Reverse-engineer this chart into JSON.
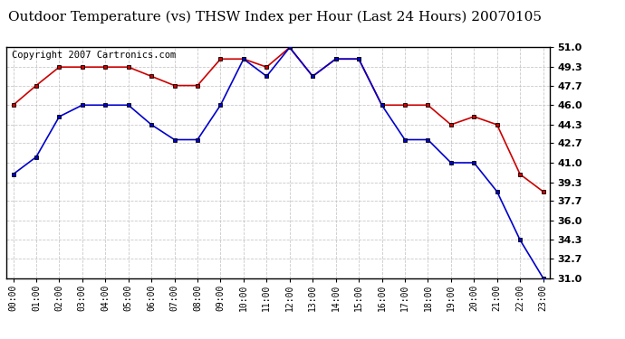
{
  "title": "Outdoor Temperature (vs) THSW Index per Hour (Last 24 Hours) 20070105",
  "copyright": "Copyright 2007 Cartronics.com",
  "hours": [
    "00:00",
    "01:00",
    "02:00",
    "03:00",
    "04:00",
    "05:00",
    "06:00",
    "07:00",
    "08:00",
    "09:00",
    "10:00",
    "11:00",
    "12:00",
    "13:00",
    "14:00",
    "15:00",
    "16:00",
    "17:00",
    "18:00",
    "19:00",
    "20:00",
    "21:00",
    "22:00",
    "23:00"
  ],
  "red_temp": [
    46.0,
    47.7,
    49.3,
    49.3,
    49.3,
    49.3,
    48.5,
    47.7,
    47.7,
    50.0,
    50.0,
    49.3,
    51.0,
    48.5,
    50.0,
    50.0,
    46.0,
    46.0,
    46.0,
    44.3,
    45.0,
    44.3,
    40.0,
    38.5
  ],
  "blue_thsw": [
    40.0,
    41.5,
    45.0,
    46.0,
    46.0,
    46.0,
    44.3,
    43.0,
    43.0,
    46.0,
    50.0,
    48.5,
    51.0,
    48.5,
    50.0,
    50.0,
    46.0,
    43.0,
    43.0,
    41.0,
    41.0,
    38.5,
    34.3,
    31.0
  ],
  "ylim_min": 31.0,
  "ylim_max": 51.0,
  "yticks": [
    31.0,
    32.7,
    34.3,
    36.0,
    37.7,
    39.3,
    41.0,
    42.7,
    44.3,
    46.0,
    47.7,
    49.3,
    51.0
  ],
  "red_color": "#cc0000",
  "blue_color": "#0000cc",
  "bg_color": "#ffffff",
  "grid_color": "#bbbbbb",
  "title_fontsize": 11,
  "copyright_fontsize": 7.5
}
